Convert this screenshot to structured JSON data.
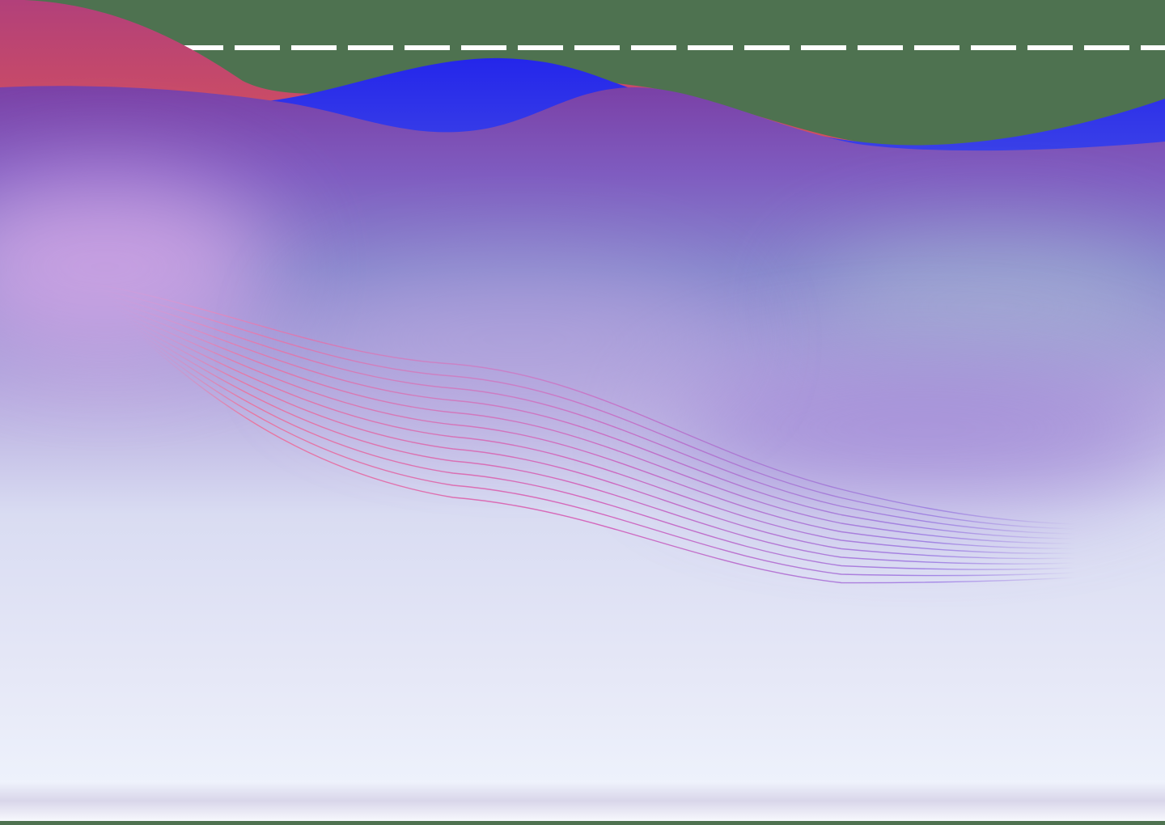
{
  "colors": {
    "backdrop_green": "#4e7250",
    "dash_line": "#ffffff",
    "red_wave_top": "#b2407a",
    "red_wave_bottom": "#d8525a",
    "blue_wave_top": "#2426ea",
    "blue_wave_bottom": "#4750e6",
    "purple_top": "#7d46ad",
    "purple_mid": "#7f63c4",
    "lavender": "#b9a6df",
    "pink_glow": "#d4a6e6",
    "mist": "#dfe2f2",
    "pale_bottom": "#eff4fd",
    "stripe_lines_left": "#f07aa0",
    "stripe_lines_right": "#8a5fe0",
    "violet_glow": "#9f85d6",
    "steel_glow": "#a9b6d4"
  },
  "decor": {
    "stripe_line_count": 12
  }
}
